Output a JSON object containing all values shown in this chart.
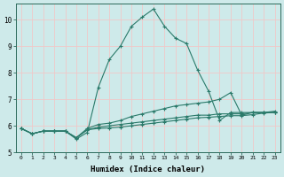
{
  "xlabel": "Humidex (Indice chaleur)",
  "background_color": "#ceeaea",
  "grid_color": "#f0c8c8",
  "line_color": "#2a7a6a",
  "xlim": [
    -0.5,
    23.5
  ],
  "ylim": [
    5.0,
    10.6
  ],
  "yticks": [
    5,
    6,
    7,
    8,
    9,
    10
  ],
  "xticks": [
    0,
    1,
    2,
    3,
    4,
    5,
    6,
    7,
    8,
    9,
    10,
    11,
    12,
    13,
    14,
    15,
    16,
    17,
    18,
    19,
    20,
    21,
    22,
    23
  ],
  "xtick_labels": [
    "0",
    "1",
    "2",
    "3",
    "4",
    "5",
    "6",
    "7",
    "8",
    "9",
    "10",
    "11",
    "12",
    "13",
    "14",
    "15",
    "16",
    "17",
    "18",
    "19",
    "20",
    "21",
    "22",
    "23"
  ],
  "curves": [
    {
      "x": [
        0,
        1,
        2,
        3,
        4,
        5,
        6,
        7,
        8,
        9,
        10,
        11,
        12,
        13,
        14,
        15,
        16,
        17,
        18,
        19,
        20,
        21,
        22,
        23
      ],
      "y": [
        5.9,
        5.7,
        5.8,
        5.8,
        5.8,
        5.5,
        5.75,
        7.45,
        8.5,
        9.0,
        9.75,
        10.1,
        10.4,
        9.75,
        9.3,
        9.1,
        8.1,
        7.3,
        6.2,
        6.5,
        6.5,
        6.5,
        6.5,
        6.5
      ]
    },
    {
      "x": [
        0,
        1,
        2,
        3,
        4,
        5,
        6,
        7,
        8,
        9,
        10,
        11,
        12,
        13,
        14,
        15,
        16,
        17,
        18,
        19,
        20,
        21,
        22,
        23
      ],
      "y": [
        5.9,
        5.7,
        5.8,
        5.8,
        5.8,
        5.55,
        5.9,
        6.05,
        6.1,
        6.2,
        6.35,
        6.45,
        6.55,
        6.65,
        6.75,
        6.8,
        6.85,
        6.9,
        7.0,
        7.25,
        6.4,
        6.5,
        6.5,
        6.55
      ]
    },
    {
      "x": [
        0,
        1,
        2,
        3,
        4,
        5,
        6,
        7,
        8,
        9,
        10,
        11,
        12,
        13,
        14,
        15,
        16,
        17,
        18,
        19,
        20,
        21,
        22,
        23
      ],
      "y": [
        5.9,
        5.7,
        5.8,
        5.8,
        5.8,
        5.55,
        5.85,
        5.95,
        6.0,
        6.05,
        6.1,
        6.15,
        6.2,
        6.25,
        6.3,
        6.35,
        6.4,
        6.4,
        6.45,
        6.45,
        6.45,
        6.5,
        6.5,
        6.5
      ]
    },
    {
      "x": [
        0,
        1,
        2,
        3,
        4,
        5,
        6,
        7,
        8,
        9,
        10,
        11,
        12,
        13,
        14,
        15,
        16,
        17,
        18,
        19,
        20,
        21,
        22,
        23
      ],
      "y": [
        5.9,
        5.7,
        5.8,
        5.8,
        5.8,
        5.55,
        5.85,
        5.9,
        5.92,
        5.95,
        6.0,
        6.05,
        6.1,
        6.15,
        6.2,
        6.25,
        6.3,
        6.32,
        6.35,
        6.38,
        6.38,
        6.42,
        6.48,
        6.5
      ]
    }
  ]
}
